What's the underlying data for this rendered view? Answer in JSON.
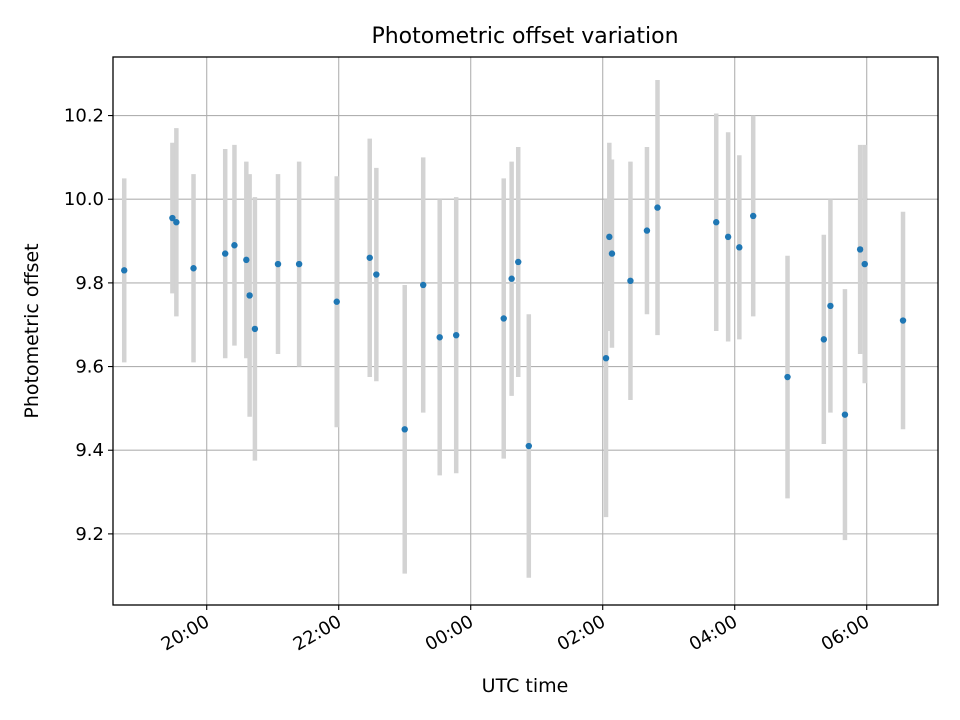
{
  "colors": {
    "point": "#1f77b4",
    "errorbar": "#d3d3d3",
    "grid": "#b0b0b0",
    "axes": "#000000"
  },
  "chart_data": {
    "type": "scatter",
    "title": "Photometric offset variation",
    "xlabel": "UTC time",
    "ylabel": "Photometric offset",
    "grid": true,
    "x_unit": "hours since 00:00 UTC (negative = previous evening)",
    "xlim": [
      -5.42,
      7.08
    ],
    "ylim": [
      9.03,
      10.34
    ],
    "x_ticks": [
      {
        "value": -4,
        "label": "20:00"
      },
      {
        "value": -2,
        "label": "22:00"
      },
      {
        "value": 0,
        "label": "00:00"
      },
      {
        "value": 2,
        "label": "02:00"
      },
      {
        "value": 4,
        "label": "04:00"
      },
      {
        "value": 6,
        "label": "06:00"
      }
    ],
    "y_ticks": [
      {
        "value": 9.2,
        "label": "9.2"
      },
      {
        "value": 9.4,
        "label": "9.4"
      },
      {
        "value": 9.6,
        "label": "9.6"
      },
      {
        "value": 9.8,
        "label": "9.8"
      },
      {
        "value": 10.0,
        "label": "10.0"
      },
      {
        "value": 10.2,
        "label": "10.2"
      }
    ],
    "points": [
      {
        "x": -5.25,
        "y": 9.83,
        "err": 0.22
      },
      {
        "x": -4.52,
        "y": 9.955,
        "err": 0.18
      },
      {
        "x": -4.46,
        "y": 9.945,
        "err": 0.225
      },
      {
        "x": -4.2,
        "y": 9.835,
        "err": 0.225
      },
      {
        "x": -3.72,
        "y": 9.87,
        "err": 0.25
      },
      {
        "x": -3.58,
        "y": 9.89,
        "err": 0.24
      },
      {
        "x": -3.4,
        "y": 9.855,
        "err": 0.235
      },
      {
        "x": -3.35,
        "y": 9.77,
        "err": 0.29
      },
      {
        "x": -3.27,
        "y": 9.69,
        "err": 0.315
      },
      {
        "x": -2.92,
        "y": 9.845,
        "err": 0.215
      },
      {
        "x": -2.6,
        "y": 9.845,
        "err": 0.245
      },
      {
        "x": -2.03,
        "y": 9.755,
        "err": 0.3
      },
      {
        "x": -1.53,
        "y": 9.86,
        "err": 0.285
      },
      {
        "x": -1.43,
        "y": 9.82,
        "err": 0.255
      },
      {
        "x": -1.0,
        "y": 9.45,
        "err": 0.345
      },
      {
        "x": -0.72,
        "y": 9.795,
        "err": 0.305
      },
      {
        "x": -0.47,
        "y": 9.67,
        "err": 0.33
      },
      {
        "x": -0.22,
        "y": 9.675,
        "err": 0.33
      },
      {
        "x": 0.5,
        "y": 9.715,
        "err": 0.335
      },
      {
        "x": 0.62,
        "y": 9.81,
        "err": 0.28
      },
      {
        "x": 0.72,
        "y": 9.85,
        "err": 0.275
      },
      {
        "x": 0.88,
        "y": 9.41,
        "err": 0.315
      },
      {
        "x": 2.05,
        "y": 9.62,
        "err": 0.38
      },
      {
        "x": 2.1,
        "y": 9.91,
        "err": 0.225
      },
      {
        "x": 2.14,
        "y": 9.87,
        "err": 0.225
      },
      {
        "x": 2.42,
        "y": 9.805,
        "err": 0.285
      },
      {
        "x": 2.67,
        "y": 9.925,
        "err": 0.2
      },
      {
        "x": 2.83,
        "y": 9.98,
        "err": 0.305
      },
      {
        "x": 3.72,
        "y": 9.945,
        "err": 0.26
      },
      {
        "x": 3.9,
        "y": 9.91,
        "err": 0.25
      },
      {
        "x": 4.07,
        "y": 9.885,
        "err": 0.22
      },
      {
        "x": 4.28,
        "y": 9.96,
        "err": 0.24
      },
      {
        "x": 4.8,
        "y": 9.575,
        "err": 0.29
      },
      {
        "x": 5.35,
        "y": 9.665,
        "err": 0.25
      },
      {
        "x": 5.45,
        "y": 9.745,
        "err": 0.255
      },
      {
        "x": 5.67,
        "y": 9.485,
        "err": 0.3
      },
      {
        "x": 5.9,
        "y": 9.88,
        "err": 0.25
      },
      {
        "x": 5.97,
        "y": 9.845,
        "err": 0.285
      },
      {
        "x": 6.55,
        "y": 9.71,
        "err": 0.26
      }
    ]
  }
}
